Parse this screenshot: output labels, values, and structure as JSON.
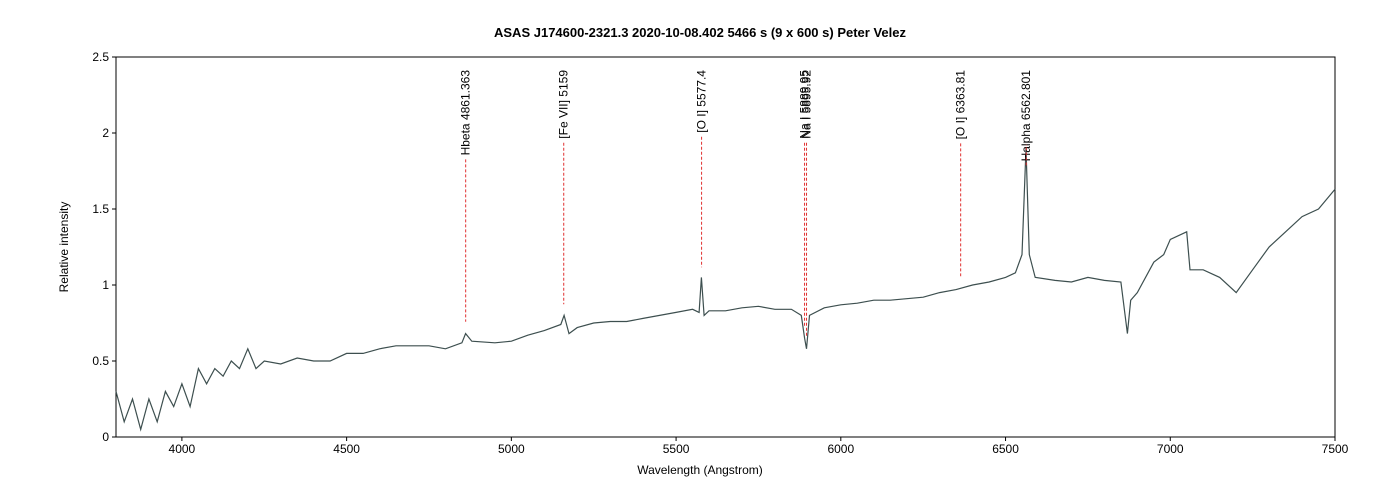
{
  "chart_data": {
    "type": "line",
    "title": "ASAS J174600-2321.3   2020-10-08.402   5466 s (9 x 600 s)   Peter Velez",
    "x_label": "Wavelength (Angstrom)",
    "y_label": "Relative intensity",
    "xlim": [
      3800,
      7500
    ],
    "xticks": [
      4000,
      4500,
      5000,
      5500,
      6000,
      6500,
      7000,
      7500
    ],
    "ylim": [
      0,
      2.5
    ],
    "yticks": [
      0,
      0.5,
      1,
      1.5,
      2,
      2.5
    ],
    "series": [
      {
        "color": "#3d4f4f",
        "x": [
          3800,
          3825,
          3850,
          3875,
          3900,
          3925,
          3950,
          3975,
          4000,
          4025,
          4050,
          4075,
          4100,
          4125,
          4150,
          4175,
          4200,
          4225,
          4250,
          4300,
          4350,
          4400,
          4450,
          4500,
          4550,
          4600,
          4650,
          4700,
          4750,
          4800,
          4850,
          4861,
          4880,
          4950,
          5000,
          5050,
          5100,
          5150,
          5160,
          5175,
          5200,
          5250,
          5300,
          5350,
          5400,
          5450,
          5500,
          5550,
          5570,
          5577,
          5585,
          5600,
          5650,
          5700,
          5750,
          5800,
          5850,
          5880,
          5890,
          5896,
          5905,
          5950,
          6000,
          6050,
          6100,
          6150,
          6200,
          6250,
          6300,
          6350,
          6400,
          6450,
          6500,
          6530,
          6550,
          6562,
          6572,
          6590,
          6650,
          6700,
          6750,
          6800,
          6850,
          6870,
          6880,
          6900,
          6950,
          6980,
          7000,
          7050,
          7060,
          7100,
          7150,
          7200,
          7250,
          7300,
          7350,
          7400,
          7450,
          7500
        ],
        "values": [
          0.3,
          0.1,
          0.25,
          0.05,
          0.25,
          0.1,
          0.3,
          0.2,
          0.35,
          0.2,
          0.45,
          0.35,
          0.45,
          0.4,
          0.5,
          0.45,
          0.58,
          0.45,
          0.5,
          0.48,
          0.52,
          0.5,
          0.5,
          0.55,
          0.55,
          0.58,
          0.6,
          0.6,
          0.6,
          0.58,
          0.62,
          0.68,
          0.63,
          0.62,
          0.63,
          0.67,
          0.7,
          0.74,
          0.8,
          0.68,
          0.72,
          0.75,
          0.76,
          0.76,
          0.78,
          0.8,
          0.82,
          0.84,
          0.82,
          1.05,
          0.8,
          0.83,
          0.83,
          0.85,
          0.86,
          0.84,
          0.84,
          0.8,
          0.65,
          0.58,
          0.8,
          0.85,
          0.87,
          0.88,
          0.9,
          0.9,
          0.91,
          0.92,
          0.95,
          0.97,
          1.0,
          1.02,
          1.05,
          1.08,
          1.2,
          1.9,
          1.2,
          1.05,
          1.03,
          1.02,
          1.05,
          1.03,
          1.02,
          0.68,
          0.9,
          0.95,
          1.15,
          1.2,
          1.3,
          1.35,
          1.1,
          1.1,
          1.05,
          0.95,
          1.1,
          1.25,
          1.35,
          1.45,
          1.5,
          1.63
        ]
      }
    ],
    "line_marks": [
      {
        "label": "Hbeta 4861.363",
        "x": 4861.363
      },
      {
        "label": "[Fe VII] 5159",
        "x": 5159
      },
      {
        "label": "[O I] 5577.4",
        "x": 5577.4
      },
      {
        "label": "Na I 5889.95",
        "x": 5889.95
      },
      {
        "label": "Na I 5895.92",
        "x": 5895.92
      },
      {
        "label": "[O I] 6363.81",
        "x": 6363.81
      },
      {
        "label": "Halpha 6562.801",
        "x": 6562.801
      }
    ],
    "line_mark_color": "#e03030"
  }
}
